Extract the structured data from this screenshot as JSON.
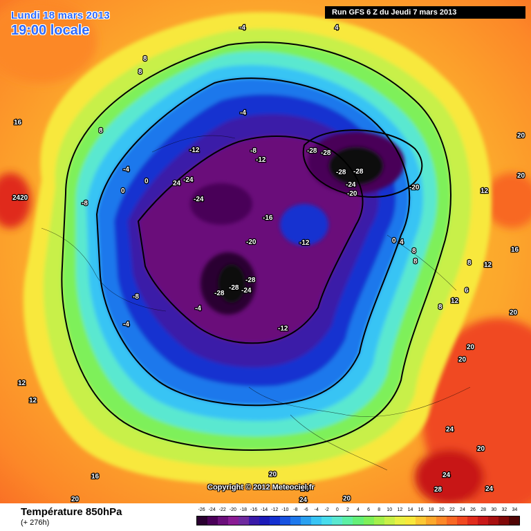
{
  "header": {
    "date": "Lundi 18 mars 2013",
    "time": "19:00 locale",
    "run": "Run GFS 6 Z du Jeudi 7 mars 2013"
  },
  "copyright": "Copyright © 2012 Meteociel.fr",
  "footer": {
    "parameter": "Température 850hPa",
    "lead": "(+ 276h)"
  },
  "scale": {
    "values": [
      "-26",
      "-24",
      "-22",
      "-20",
      "-18",
      "-16",
      "-14",
      "-12",
      "-10",
      "-8",
      "-6",
      "-4",
      "-2",
      "0",
      "2",
      "4",
      "6",
      "8",
      "10",
      "12",
      "14",
      "16",
      "18",
      "20",
      "22",
      "24",
      "26",
      "28",
      "30",
      "32",
      "34"
    ],
    "colors": [
      "#2a0030",
      "#4a0058",
      "#6b0f7a",
      "#8a1c94",
      "#6e2a9e",
      "#3a1aa8",
      "#1c1ab8",
      "#1430d0",
      "#1852e0",
      "#1e78ec",
      "#2aa0f0",
      "#38c4f4",
      "#48dcec",
      "#5ae8d0",
      "#5cf0a4",
      "#64f078",
      "#7ef05a",
      "#a4f04c",
      "#c8f048",
      "#e8f044",
      "#f8e83c",
      "#fcc834",
      "#fca82c",
      "#fc8828",
      "#f86824",
      "#f04820",
      "#e02c1c",
      "#c81818",
      "#a81010",
      "#800808",
      "#500404"
    ]
  },
  "map_labels": {
    "values": [
      "-4",
      "4",
      "8",
      "8",
      "16",
      "8",
      "-4",
      "0",
      "0",
      "2420",
      "-8",
      "-12",
      "-8",
      "-12",
      "-4",
      "-24",
      "24",
      "-24",
      "-28",
      "-28",
      "-28",
      "-28",
      "-24",
      "-20",
      "-20",
      "12",
      "20",
      "20",
      "-16",
      "-20",
      "-12",
      "0",
      "4",
      "8",
      "16",
      "12",
      "8",
      "6",
      "12",
      "20",
      "20",
      "20",
      "-28",
      "-28",
      "-24",
      "-28",
      "-8",
      "-4",
      "-4",
      "-12",
      "12",
      "12",
      "16",
      "20",
      "24",
      "20",
      "24",
      "24",
      "28",
      "24",
      "24",
      "20",
      "20",
      "8",
      "8"
    ]
  }
}
